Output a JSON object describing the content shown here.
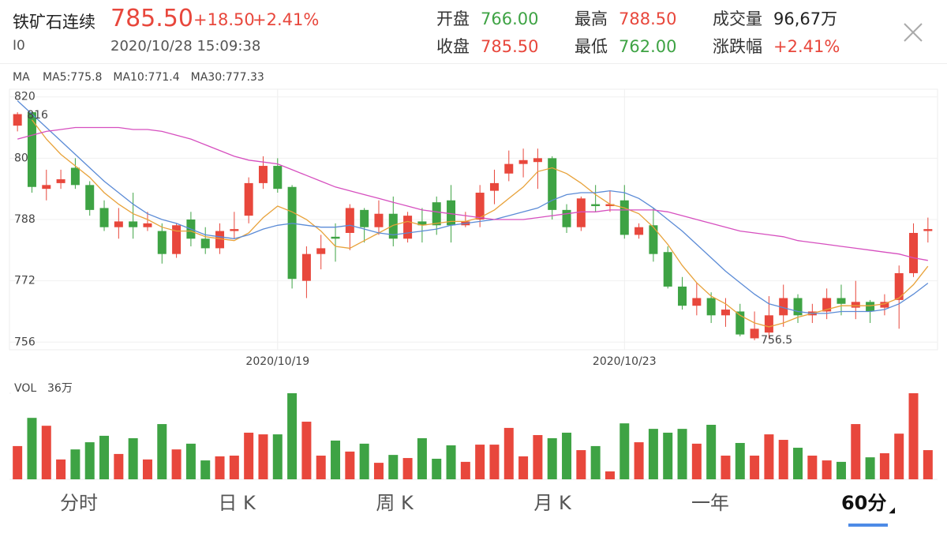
{
  "header": {
    "name": "铁矿石连续",
    "code": "I0",
    "price": "785.50",
    "change": "+18.50",
    "change_pct": "+2.41%",
    "time": "2020/10/28 15:09:38",
    "stats": [
      {
        "label": "开盘",
        "value": "766.00",
        "color": "#3ea344"
      },
      {
        "label": "最高",
        "value": "788.50",
        "color": "#e8473c"
      },
      {
        "label": "成交量",
        "value": "96,67万",
        "color": "#222222"
      },
      {
        "label": "收盘",
        "value": "785.50",
        "color": "#e8473c"
      },
      {
        "label": "最低",
        "value": "762.00",
        "color": "#3ea344"
      },
      {
        "label": "涨跌幅",
        "value": "+2.41%",
        "color": "#e8473c"
      }
    ]
  },
  "chart_data": {
    "type": "candlestick",
    "up_color": "#e8473c",
    "down_color": "#3ea344",
    "ma_title": "MA",
    "categories": [
      null,
      null,
      null,
      null,
      null,
      null,
      null,
      null,
      null,
      null,
      null,
      null,
      null,
      null,
      null,
      null,
      null,
      null,
      "2020/10/19",
      null,
      null,
      null,
      null,
      null,
      null,
      null,
      null,
      null,
      null,
      null,
      null,
      null,
      null,
      null,
      null,
      null,
      null,
      null,
      null,
      null,
      null,
      null,
      "2020/10/23",
      null,
      null,
      null,
      null,
      null,
      null,
      null,
      null,
      null,
      null,
      null,
      null,
      null,
      null,
      null,
      null,
      null,
      null,
      null,
      null,
      null
    ],
    "open": [
      812.5,
      816,
      796,
      797.5,
      801.5,
      797,
      791,
      786,
      787.5,
      786,
      785,
      779,
      788,
      783,
      780.5,
      785,
      789,
      797.5,
      802,
      796.5,
      772,
      779,
      783.5,
      784.5,
      790.5,
      786,
      789.5,
      783,
      787.5,
      792.5,
      793,
      786.5,
      788,
      795.5,
      800,
      802.5,
      803,
      804,
      790.5,
      786,
      792,
      791.5,
      793,
      784,
      786.5,
      779.5,
      770.5,
      765.5,
      767.5,
      763,
      764,
      757,
      758.5,
      763,
      767.5,
      763,
      764,
      767.5,
      765,
      766.5,
      765,
      767,
      774,
      785
    ],
    "high": [
      816,
      816,
      801,
      801,
      804,
      798,
      793,
      791,
      795,
      790,
      787,
      787,
      790,
      786,
      787,
      790,
      799,
      804.5,
      804,
      797,
      781,
      784,
      787,
      792,
      791,
      793,
      794,
      790,
      791,
      794,
      797,
      790,
      797,
      801,
      806,
      806.5,
      806.5,
      804.5,
      792,
      794,
      797,
      795.5,
      797,
      787,
      791,
      781,
      773,
      771.5,
      769,
      767.5,
      766,
      764,
      768,
      771,
      768.5,
      766,
      770,
      771,
      772,
      767,
      768.5,
      776,
      787,
      788.5
    ],
    "low": [
      811,
      795,
      793,
      796,
      796,
      789,
      785,
      783,
      783,
      785,
      776.5,
      778,
      781,
      779,
      779,
      783,
      787,
      796,
      795,
      770,
      767.5,
      775,
      777,
      780,
      782,
      784,
      781,
      782,
      782,
      784,
      782,
      786,
      786,
      792,
      798,
      799,
      796,
      788,
      784.5,
      785,
      790,
      790,
      783,
      783,
      777,
      770,
      764.5,
      763,
      761,
      760,
      757.5,
      756.5,
      757,
      760,
      761,
      761,
      762,
      763,
      762,
      761,
      763,
      759.5,
      773,
      782
    ],
    "close": [
      815.5,
      796.5,
      797,
      798.5,
      797,
      790.5,
      786,
      787.5,
      786,
      787,
      779,
      786.5,
      783,
      780.5,
      785,
      785.5,
      797.5,
      802,
      796,
      772.5,
      779,
      780.5,
      783,
      791,
      786,
      789.5,
      783,
      789,
      786.5,
      786.5,
      786.5,
      787.5,
      795,
      797.5,
      802.5,
      803.5,
      804,
      790.5,
      786,
      793.5,
      791.5,
      792,
      784,
      786,
      779,
      770.5,
      765.5,
      767.5,
      763,
      764.5,
      758,
      759.5,
      763,
      767.5,
      763,
      764,
      767.5,
      766,
      766.5,
      764,
      766.5,
      774,
      784.5,
      785.5
    ],
    "series": [
      {
        "name": "MA5:775.8",
        "color": "#e8a23a",
        "values": [
          null,
          814,
          809,
          805,
          802,
          799,
          795,
          792,
          789.5,
          788,
          786,
          785,
          785,
          783.5,
          783,
          782.5,
          784.5,
          788.5,
          791.5,
          790,
          788,
          785,
          781,
          780.5,
          782.5,
          784.5,
          786.5,
          787.5,
          786.5,
          787,
          787.5,
          787.5,
          788.5,
          790.5,
          793.5,
          796.5,
          800.5,
          801.5,
          800,
          797.5,
          794.5,
          792,
          791,
          789.5,
          786,
          781.5,
          776,
          771.5,
          768,
          766,
          763,
          761,
          760,
          761,
          762.5,
          763.5,
          764.5,
          765.5,
          765.5,
          765.5,
          766,
          767.5,
          771,
          775.8
        ]
      },
      {
        "name": "MA10:771.4",
        "color": "#5b8bd6",
        "values": [
          819,
          815.5,
          812,
          808.5,
          805,
          801.5,
          798,
          795,
          792,
          789.5,
          788,
          787,
          785.5,
          784,
          783.5,
          783,
          784,
          785.5,
          786.5,
          787,
          786.5,
          786,
          786,
          786.5,
          785.5,
          784.5,
          784,
          784.5,
          785,
          785.5,
          786.5,
          787,
          787.5,
          788,
          789,
          790,
          791,
          793,
          794.5,
          795,
          795,
          795.5,
          795,
          793.5,
          791,
          788,
          785,
          781.5,
          778,
          774.5,
          771.5,
          768.5,
          766,
          765,
          764,
          763.5,
          763.5,
          764,
          764,
          764,
          764.5,
          766,
          768.5,
          771.4
        ]
      },
      {
        "name": "MA30:777.33",
        "color": "#d64fbf",
        "values": [
          809,
          810,
          811,
          811.5,
          812,
          812,
          812,
          812,
          811.5,
          811.5,
          811,
          810,
          809,
          807.5,
          806,
          804.5,
          803.5,
          803,
          802.5,
          801,
          799.5,
          798,
          796.5,
          795.5,
          794.5,
          793.5,
          792.5,
          791.5,
          790.5,
          790,
          789.5,
          789,
          788.5,
          788,
          788,
          788,
          788.5,
          789,
          789.5,
          790,
          790,
          790.5,
          790.5,
          790.5,
          790.5,
          790,
          789,
          788,
          787,
          786,
          785,
          784.5,
          784,
          783.5,
          782.5,
          782,
          781.5,
          781,
          780.5,
          780,
          779.5,
          779,
          778,
          777.33
        ]
      }
    ],
    "ylim": [
      754,
      822
    ],
    "yticks": [
      820,
      804,
      788,
      772,
      756
    ],
    "grid": true,
    "annotations": [
      {
        "text": "816",
        "value": 816
      },
      {
        "text": "756.5",
        "value": 756.5
      }
    ],
    "volume": {
      "title": "VOL",
      "ylim": [
        0,
        36
      ],
      "yticks": [
        {
          "value": 36,
          "label": "36万"
        }
      ],
      "values": [
        13.9,
        25.7,
        22.4,
        8.3,
        12.5,
        15.5,
        18.2,
        10.6,
        17.2,
        8.3,
        23.1,
        12.5,
        14.9,
        7.9,
        9.6,
        9.9,
        19.5,
        18.8,
        18.8,
        36,
        24.1,
        9.9,
        16.2,
        11.6,
        14.9,
        6.9,
        10.2,
        8.9,
        17.2,
        8.6,
        14.2,
        7.3,
        14.5,
        14.5,
        21.5,
        9.6,
        18.5,
        17.2,
        19.5,
        12.2,
        13.9,
        3.3,
        23.4,
        15.5,
        21.1,
        19.5,
        21.1,
        14.9,
        22.8,
        9.9,
        15.2,
        9.9,
        18.8,
        16.5,
        13.2,
        9.9,
        7.9,
        7.3,
        23.1,
        9.2,
        10.9,
        19.1,
        36,
        12.2
      ]
    }
  },
  "tabs": {
    "items": [
      "分时",
      "日 K",
      "周 K",
      "月 K",
      "一年",
      "60分"
    ],
    "active": 5
  }
}
